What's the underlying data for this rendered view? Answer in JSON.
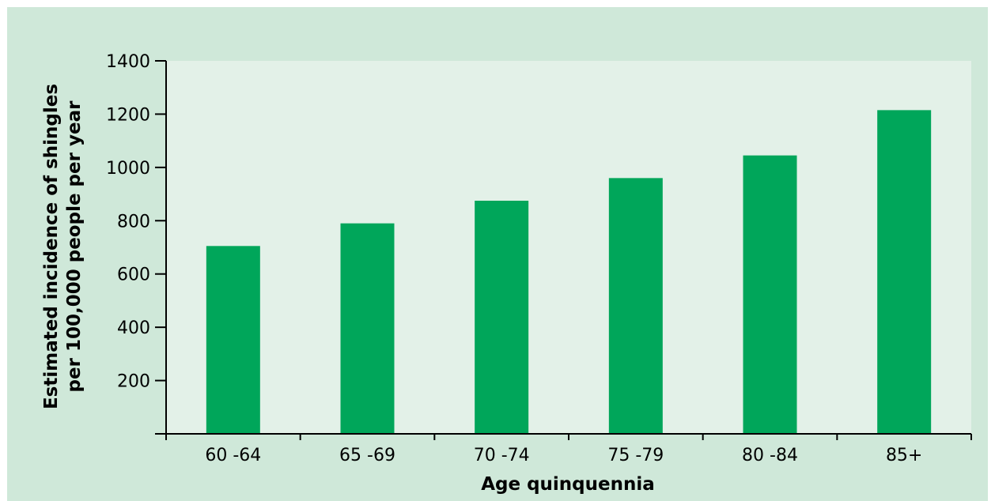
{
  "chart_data": {
    "type": "bar",
    "categories": [
      "60 -64",
      "65 -69",
      "70 -74",
      "75 -79",
      "80 -84",
      "85+"
    ],
    "values": [
      705,
      790,
      875,
      960,
      1045,
      1215
    ],
    "xlabel": "Age quinquennia",
    "ylabel_line1": "Estimated incidence of shingles",
    "ylabel_line2": "per 100,000 people per year",
    "ylim": [
      0,
      1400
    ],
    "yticks": [
      200,
      400,
      600,
      800,
      1000,
      1200,
      1400
    ],
    "grid": false,
    "colors": {
      "bar": "#00a65a",
      "plot_background": "#e3f1e8",
      "frame_background": "#cfe8d9"
    }
  }
}
